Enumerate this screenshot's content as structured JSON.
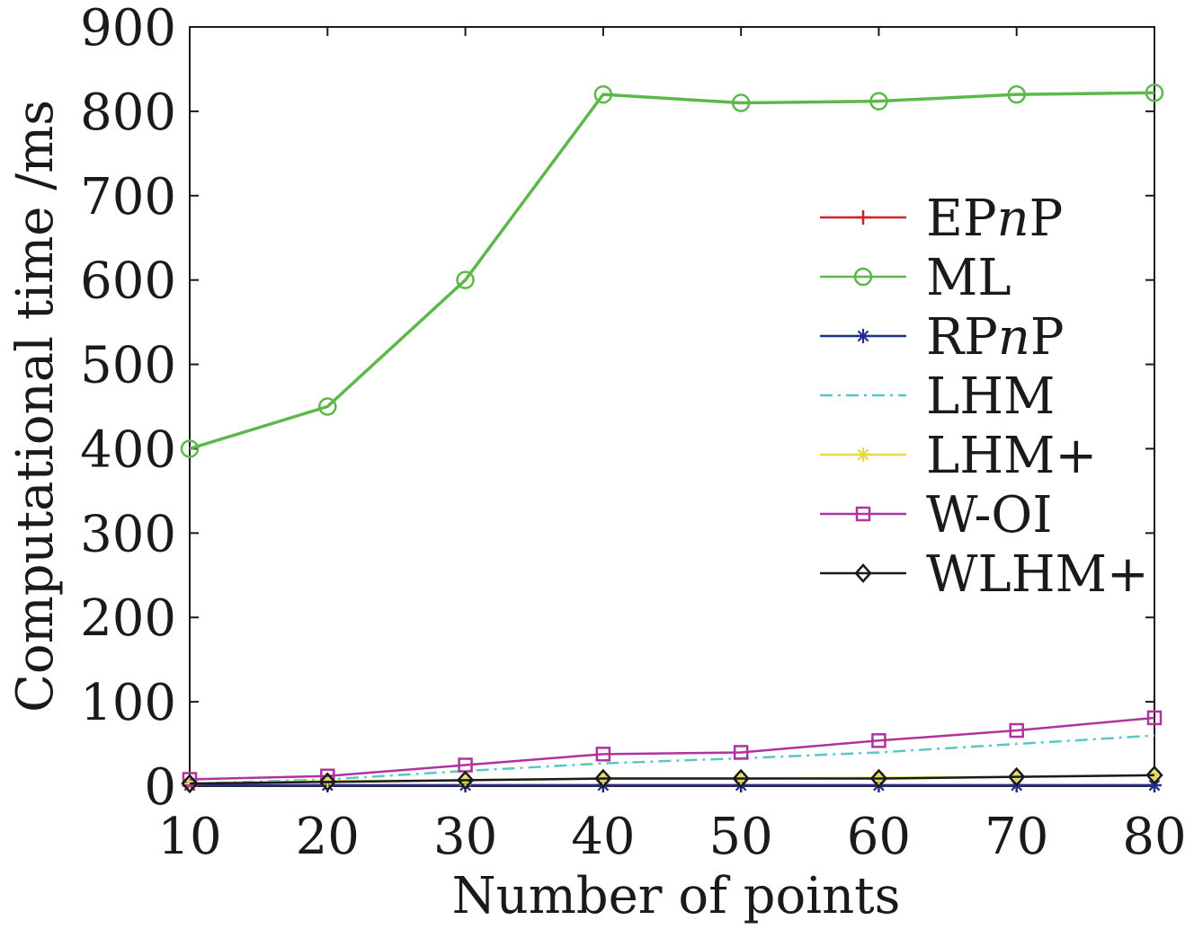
{
  "chart_data": {
    "type": "line",
    "title": "",
    "xlabel": "Number of points",
    "ylabel": "Computational time /ms",
    "x": [
      10,
      20,
      30,
      40,
      50,
      60,
      70,
      80
    ],
    "xlim": [
      10,
      80
    ],
    "ylim": [
      0,
      900
    ],
    "xticks": [
      10,
      20,
      30,
      40,
      50,
      60,
      70,
      80
    ],
    "yticks": [
      0,
      100,
      200,
      300,
      400,
      500,
      600,
      700,
      800,
      900
    ],
    "grid": false,
    "legend_position": "right",
    "series": [
      {
        "name": "EPnP",
        "label_parts": [
          "EP",
          "n",
          "P"
        ],
        "color": "#d0202a",
        "marker": "plus",
        "dash": "",
        "values": [
          1,
          1,
          1,
          1,
          1,
          1,
          1,
          1
        ]
      },
      {
        "name": "ML",
        "label_parts": [
          "ML"
        ],
        "color": "#5cb84a",
        "marker": "circle",
        "dash": "",
        "values": [
          400,
          450,
          600,
          820,
          810,
          812,
          820,
          822
        ]
      },
      {
        "name": "RPnP",
        "label_parts": [
          "RP",
          "n",
          "P"
        ],
        "color": "#1f2f8f",
        "marker": "asterisk",
        "dash": "",
        "values": [
          1,
          1,
          1,
          1,
          1,
          1,
          1,
          1
        ]
      },
      {
        "name": "LHM",
        "label_parts": [
          "LHM"
        ],
        "color": "#5cc6c6",
        "marker": "none",
        "dash": "14,6,3,6",
        "values": [
          3,
          8,
          18,
          27,
          33,
          40,
          50,
          60
        ]
      },
      {
        "name": "LHM+",
        "label_parts": [
          "LHM+"
        ],
        "color": "#e6d84a",
        "marker": "asterisk",
        "dash": "",
        "values": [
          3,
          6,
          7,
          9,
          9,
          10,
          11,
          13
        ]
      },
      {
        "name": "W-OI",
        "label_parts": [
          "W-OI"
        ],
        "color": "#b0329e",
        "marker": "square",
        "dash": "",
        "values": [
          8,
          12,
          25,
          38,
          40,
          54,
          66,
          81
        ]
      },
      {
        "name": "WLHM+",
        "label_parts": [
          "WLHM+"
        ],
        "color": "#1a1a1a",
        "marker": "diamond",
        "dash": "",
        "values": [
          3,
          5,
          7,
          9,
          9,
          9,
          11,
          13
        ]
      }
    ]
  }
}
